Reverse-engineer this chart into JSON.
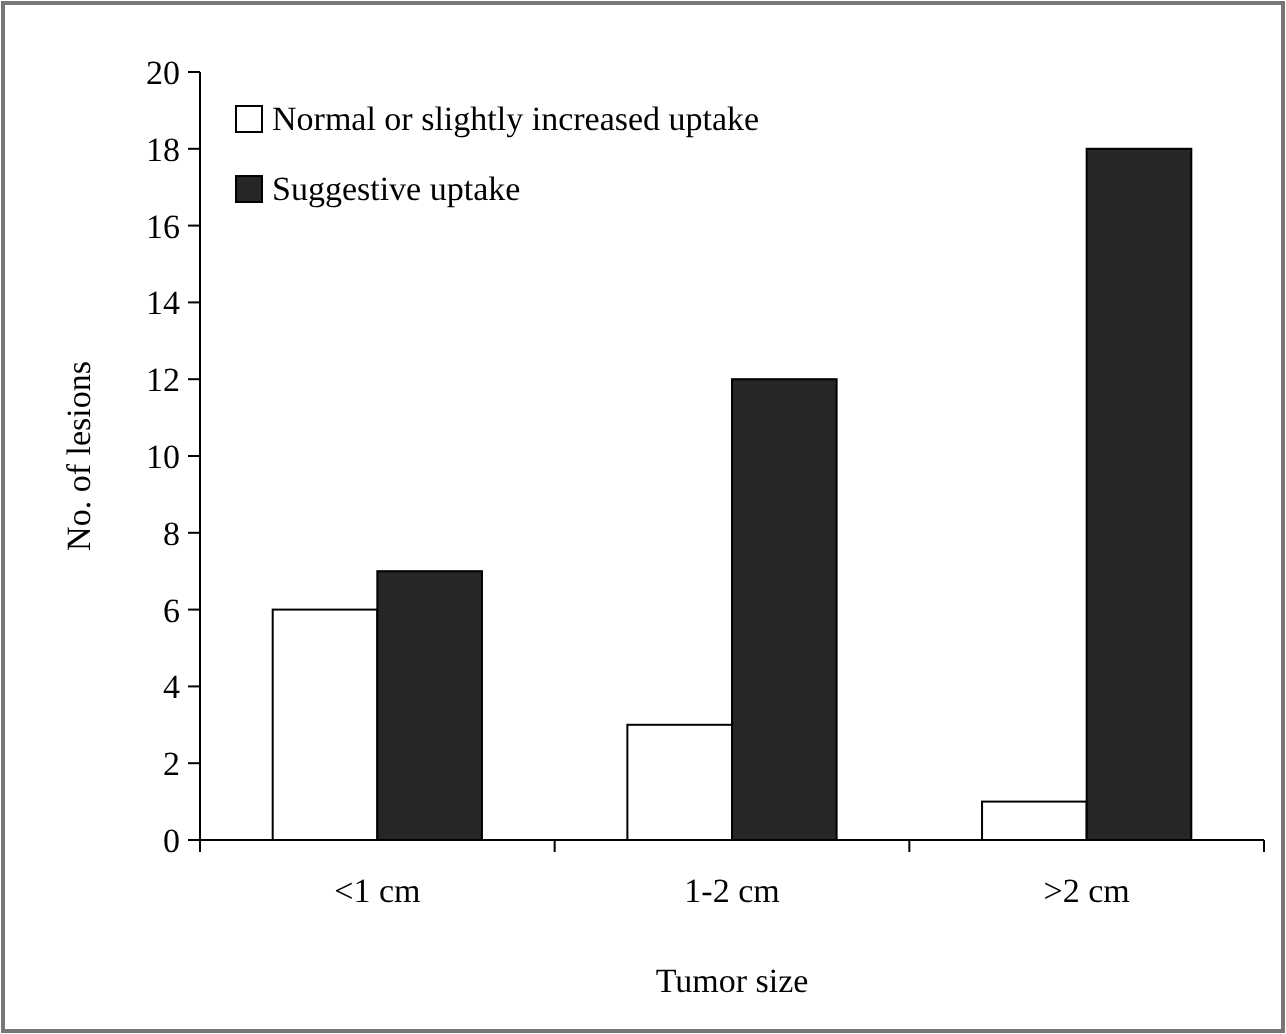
{
  "chart_data": {
    "type": "bar",
    "xlabel": "Tumor size",
    "ylabel": "No. of lesions",
    "categories": [
      "<1 cm",
      "1-2 cm",
      ">2 cm"
    ],
    "series": [
      {
        "name": "Normal or slightly increased uptake",
        "color": "#ffffff",
        "values": [
          6,
          3,
          1
        ]
      },
      {
        "name": "Suggestive uptake",
        "color": "#262626",
        "values": [
          7,
          12,
          18
        ]
      }
    ],
    "ylim": [
      0,
      20
    ],
    "yticks": [
      0,
      2,
      4,
      6,
      8,
      10,
      12,
      14,
      16,
      18,
      20
    ],
    "grid": false,
    "legend": "top left"
  }
}
